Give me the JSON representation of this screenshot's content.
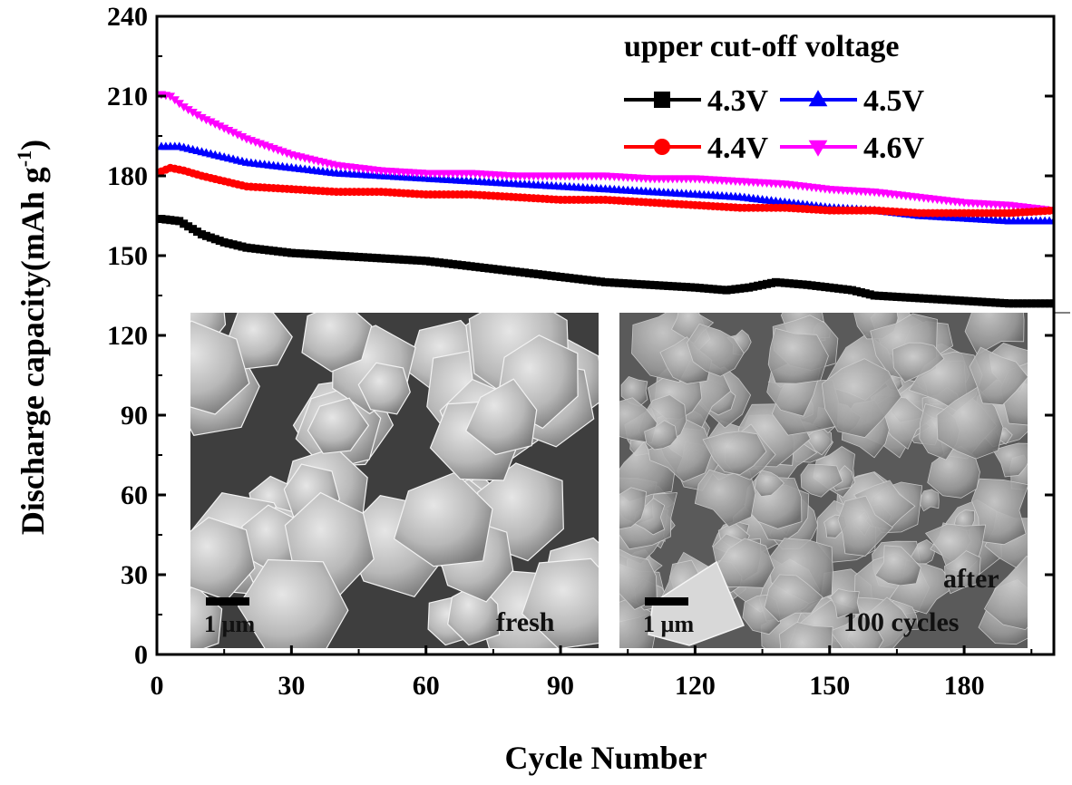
{
  "chart_data": {
    "type": "line",
    "xlabel": "Cycle Number",
    "ylabel": "Discharge capacity(mAh g",
    "ylabel_sup": "-1",
    "ylabel_close": ")",
    "xlim": [
      0,
      200
    ],
    "ylim": [
      0,
      240
    ],
    "x_ticks": [
      0,
      30,
      60,
      90,
      120,
      150,
      180
    ],
    "y_ticks": [
      0,
      30,
      60,
      90,
      120,
      150,
      180,
      210,
      240
    ],
    "legend_title": "upper cut-off voltage",
    "legend_placement": "top-right",
    "grid": false,
    "series": [
      {
        "name": "4.3V",
        "color": "#000000",
        "marker": "square",
        "x": [
          0,
          5,
          10,
          15,
          20,
          25,
          30,
          40,
          50,
          60,
          70,
          80,
          90,
          100,
          110,
          120,
          127,
          132,
          138,
          145,
          150,
          155,
          160,
          170,
          180,
          190,
          200
        ],
        "y": [
          164,
          163,
          158,
          155,
          153,
          152,
          151,
          150,
          149,
          148,
          146,
          144,
          142,
          140,
          139,
          138,
          137,
          138,
          140,
          139,
          138,
          137,
          135,
          134,
          133,
          132,
          132
        ]
      },
      {
        "name": "4.4V",
        "color": "#ff0000",
        "marker": "circle",
        "x": [
          0,
          3,
          6,
          10,
          15,
          20,
          30,
          40,
          50,
          60,
          70,
          80,
          90,
          100,
          110,
          120,
          130,
          140,
          150,
          160,
          170,
          180,
          190,
          200
        ],
        "y": [
          181,
          183,
          182,
          180,
          178,
          176,
          175,
          174,
          174,
          173,
          173,
          172,
          171,
          171,
          170,
          169,
          168,
          168,
          167,
          167,
          166,
          166,
          166,
          167
        ]
      },
      {
        "name": "4.5V",
        "color": "#0000ff",
        "marker": "triangle-up",
        "x": [
          0,
          5,
          10,
          15,
          20,
          30,
          40,
          50,
          60,
          70,
          80,
          90,
          100,
          110,
          120,
          130,
          140,
          150,
          160,
          170,
          180,
          190,
          200
        ],
        "y": [
          191,
          191,
          189,
          187,
          185,
          183,
          181,
          180,
          179,
          178,
          177,
          176,
          175,
          174,
          173,
          172,
          170,
          168,
          167,
          165,
          164,
          163,
          163
        ]
      },
      {
        "name": "4.6V",
        "color": "#ff00ff",
        "marker": "triangle-down",
        "x": [
          0,
          3,
          6,
          10,
          15,
          20,
          25,
          30,
          40,
          50,
          60,
          70,
          80,
          90,
          100,
          110,
          120,
          130,
          140,
          150,
          160,
          170,
          180,
          190,
          200
        ],
        "y": [
          211,
          210,
          206,
          202,
          198,
          194,
          191,
          188,
          184,
          182,
          181,
          181,
          180,
          180,
          180,
          179,
          179,
          178,
          177,
          175,
          174,
          172,
          170,
          169,
          167
        ]
      }
    ]
  },
  "insets": {
    "fresh": {
      "scale_label": "1 µm",
      "caption": "fresh"
    },
    "after": {
      "scale_label": "1 µm",
      "caption_line1": "after",
      "caption_line2": "100 cycles"
    }
  }
}
